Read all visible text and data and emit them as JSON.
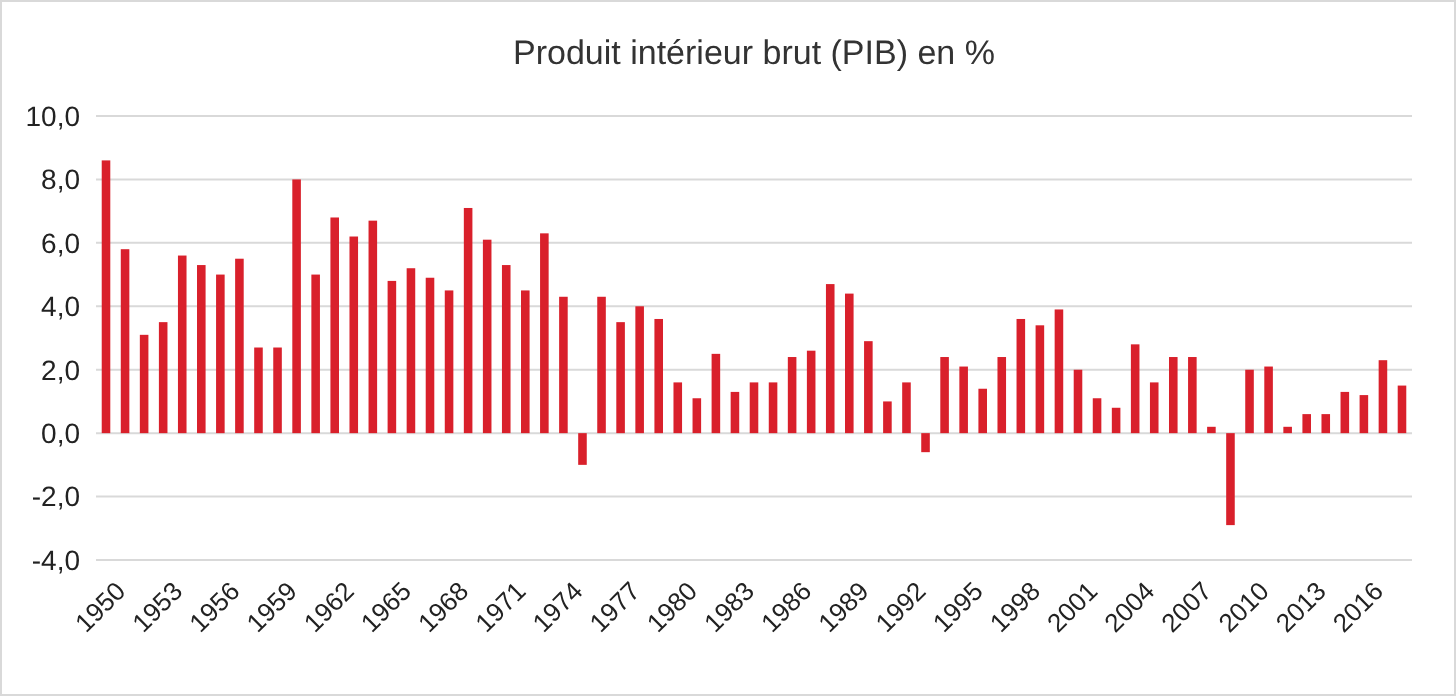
{
  "chart_data": {
    "type": "bar",
    "title": "Produit intérieur brut (PIB) en %",
    "categories": [
      "1950",
      null,
      null,
      "1953",
      null,
      null,
      "1956",
      null,
      null,
      "1959",
      null,
      null,
      "1962",
      null,
      null,
      "1965",
      null,
      null,
      "1968",
      null,
      null,
      "1971",
      null,
      null,
      "1974",
      null,
      null,
      "1977",
      null,
      null,
      "1980",
      null,
      null,
      "1983",
      null,
      null,
      "1986",
      null,
      null,
      "1989",
      null,
      null,
      "1992",
      null,
      null,
      "1995",
      null,
      null,
      "1998",
      null,
      null,
      "2001",
      null,
      null,
      "2004",
      null,
      null,
      "2007",
      null,
      null,
      "2010",
      null,
      null,
      "2013",
      null,
      null,
      "2016",
      null,
      null
    ],
    "values": [
      8.6,
      5.8,
      3.1,
      3.5,
      5.6,
      5.3,
      5.0,
      5.5,
      2.7,
      2.7,
      8.0,
      5.0,
      6.8,
      6.2,
      6.7,
      4.8,
      5.2,
      4.9,
      4.5,
      7.1,
      6.1,
      5.3,
      4.5,
      6.3,
      4.3,
      -1.0,
      4.3,
      3.5,
      4.0,
      3.6,
      1.6,
      1.1,
      2.5,
      1.3,
      1.6,
      1.6,
      2.4,
      2.6,
      4.7,
      4.4,
      2.9,
      1.0,
      1.6,
      -0.6,
      2.4,
      2.1,
      1.4,
      2.4,
      3.6,
      3.4,
      3.9,
      2.0,
      1.1,
      0.8,
      2.8,
      1.6,
      2.4,
      2.4,
      0.2,
      -2.9,
      2.0,
      2.1,
      0.2,
      0.6,
      0.6,
      1.3,
      1.2,
      2.3,
      1.5
    ],
    "color": "#d9202b",
    "ylim": [
      -4,
      10
    ],
    "yticks": [
      {
        "value": -4,
        "label": "-4,0"
      },
      {
        "value": -2,
        "label": "-2,0"
      },
      {
        "value": 0,
        "label": "0,0"
      },
      {
        "value": 2,
        "label": "2,0"
      },
      {
        "value": 4,
        "label": "4,0"
      },
      {
        "value": 6,
        "label": "6,0"
      },
      {
        "value": 8,
        "label": "8,0"
      },
      {
        "value": 10,
        "label": "10,0"
      }
    ],
    "grid": "y"
  }
}
